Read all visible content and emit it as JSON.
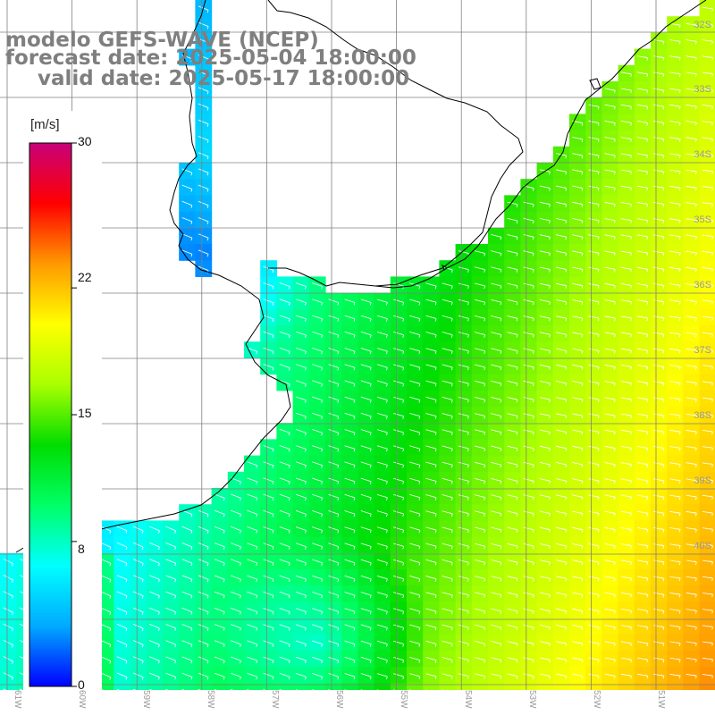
{
  "header": {
    "line1": "modelo GEFS-WAVE (NCEP)",
    "line2": "forecast date: 2025-05-04 18:00:00",
    "line3": "valid date: 2025-05-17 18:00:00"
  },
  "colorbar": {
    "unit": "[m/s]",
    "ticks": [
      {
        "label": "30",
        "value": 30
      },
      {
        "label": "22",
        "value": 22
      },
      {
        "label": "15",
        "value": 15
      },
      {
        "label": "8",
        "value": 8
      },
      {
        "label": "0",
        "value": 0
      }
    ],
    "colors": [
      "#0000ff",
      "#00aaff",
      "#00ffff",
      "#00ff66",
      "#00dd00",
      "#aaff00",
      "#ffff00",
      "#ff9900",
      "#ff0000",
      "#c8007a"
    ]
  },
  "map": {
    "variable": "wind speed",
    "lat_labels": [
      "32S",
      "33S",
      "34S",
      "35S",
      "36S",
      "37S",
      "38S",
      "39S",
      "40S"
    ],
    "lon_labels": [
      "61W",
      "60W",
      "59W",
      "58W",
      "57W",
      "56W",
      "55W",
      "54W",
      "53W",
      "52W",
      "51W"
    ],
    "land_color": "#ffffff",
    "grid_color": "#808080",
    "coast_color": "#000000",
    "arrow_color": "#ffffff"
  }
}
